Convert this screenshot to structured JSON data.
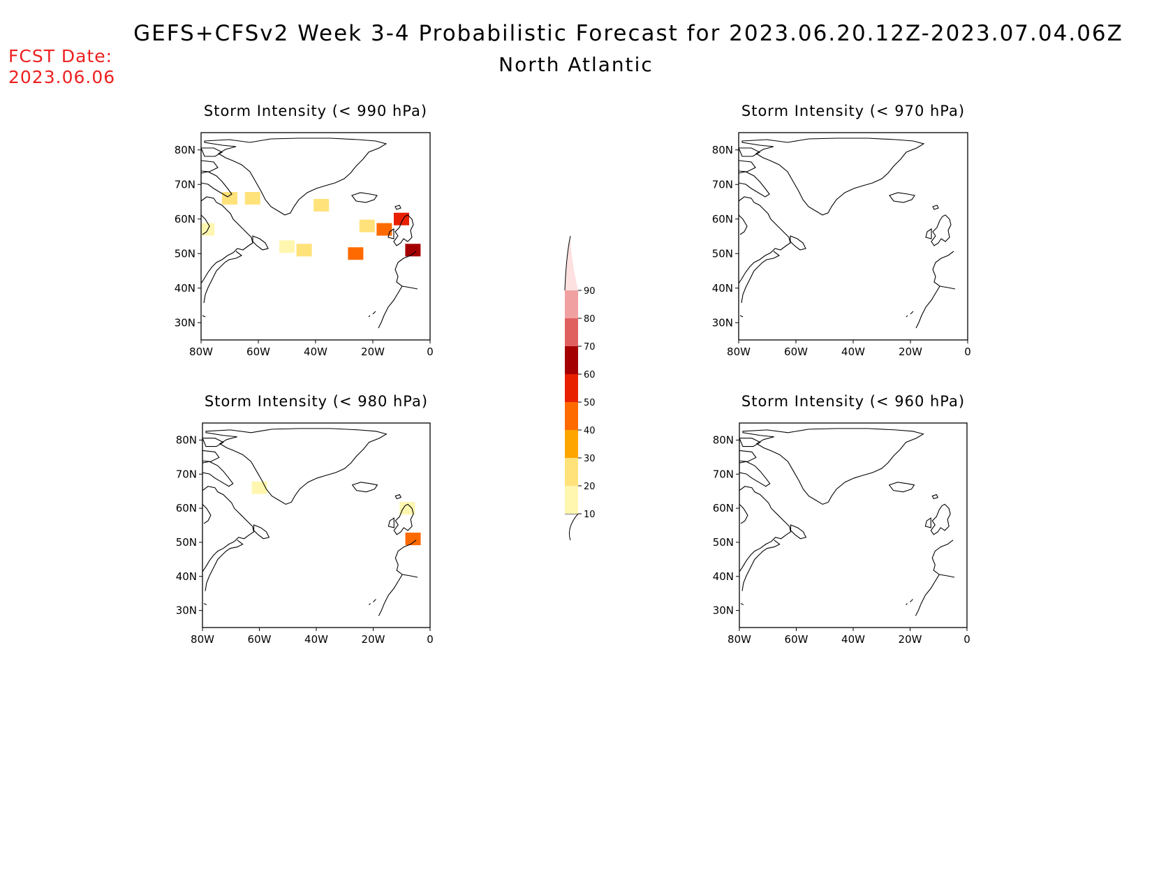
{
  "header": {
    "title": "GEFS+CFSv2 Week 3-4 Probabilistic Forecast for 2023.06.20.12Z-2023.07.04.06Z",
    "subtitle": "North Atlantic",
    "fcst_label": "FCST Date:",
    "fcst_value": "2023.06.06"
  },
  "axes": {
    "lon_labels": [
      "80W",
      "60W",
      "40W",
      "20W",
      "0"
    ],
    "lat_labels": [
      "80N",
      "70N",
      "60N",
      "50N",
      "40N",
      "30N"
    ]
  },
  "panels": [
    {
      "id": "p990",
      "title": "Storm Intensity (< 990 hPa)"
    },
    {
      "id": "p970",
      "title": "Storm Intensity (< 970 hPa)"
    },
    {
      "id": "p980",
      "title": "Storm Intensity (< 980 hPa)"
    },
    {
      "id": "p960",
      "title": "Storm Intensity (< 960 hPa)"
    }
  ],
  "colorbar": {
    "levels": [
      "10",
      "20",
      "30",
      "40",
      "50",
      "60",
      "70",
      "80",
      "90"
    ],
    "colors": [
      "#fff6b0",
      "#ffe27a",
      "#ffa500",
      "#ff6a00",
      "#e82000",
      "#a50000",
      "#e06060",
      "#f0a0a0",
      "#fde0e0"
    ]
  },
  "probability_cells": {
    "p990": [
      {
        "lon": -78,
        "lat": 57,
        "level": "10-20"
      },
      {
        "lon": -70,
        "lat": 66,
        "level": "20-30"
      },
      {
        "lon": -62,
        "lat": 66,
        "level": "20-30"
      },
      {
        "lon": -50,
        "lat": 52,
        "level": "10-20"
      },
      {
        "lon": -44,
        "lat": 51,
        "level": "20-30"
      },
      {
        "lon": -38,
        "lat": 64,
        "level": "20-30"
      },
      {
        "lon": -26,
        "lat": 50,
        "level": "40-50"
      },
      {
        "lon": -22,
        "lat": 58,
        "level": "20-30"
      },
      {
        "lon": -16,
        "lat": 57,
        "level": "40-50"
      },
      {
        "lon": -10,
        "lat": 60,
        "level": "50-60"
      },
      {
        "lon": -6,
        "lat": 51,
        "level": "60-70"
      }
    ],
    "p980": [
      {
        "lon": -60,
        "lat": 66,
        "level": "10-20"
      },
      {
        "lon": -8,
        "lat": 60,
        "level": "10-20"
      },
      {
        "lon": -6,
        "lat": 51,
        "level": "40-50"
      }
    ],
    "p970": [],
    "p960": []
  }
}
